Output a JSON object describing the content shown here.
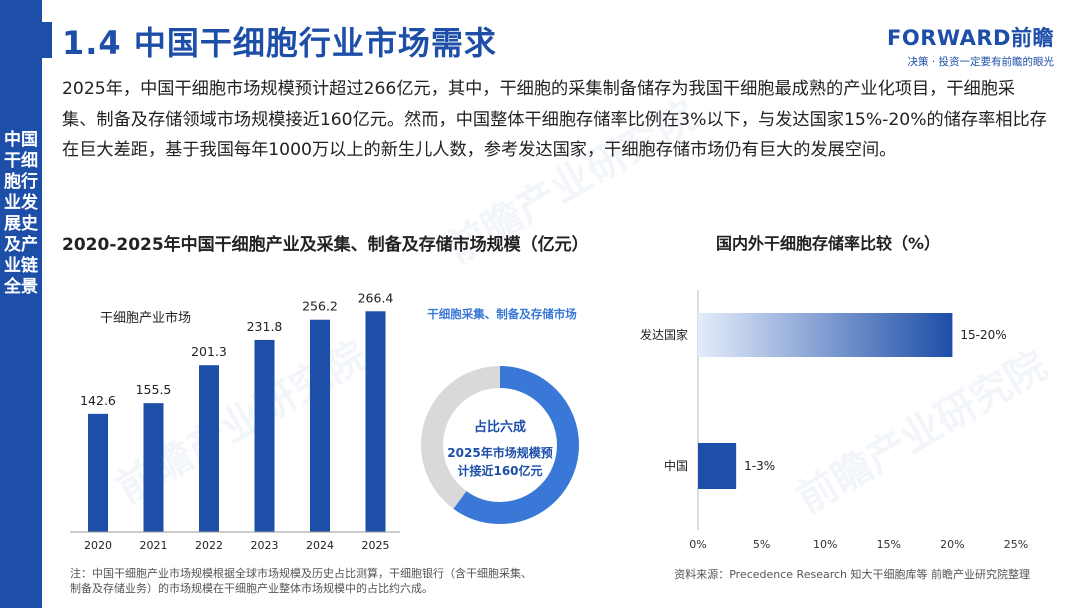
{
  "header": {
    "title": "1.4 中国干细胞行业市场需求",
    "logo_main": "FORWARD前瞻",
    "logo_sub": "决策 · 投资一定要有前瞻的眼光"
  },
  "sidebar": {
    "text": "中国干细胞行业发展史及产业链全景"
  },
  "intro": "2025年，中国干细胞市场规模预计超过266亿元，其中，干细胞的采集制备储存为我国干细胞最成熟的产业化项目，干细胞采集、制备及存储领域市场规模接近160亿元。然而，中国整体干细胞存储率比例在3%以下，与发达国家15%-20%的储存率相比存在巨大差距，基于我国每年1000万以上的新生儿人数，参考发达国家，干细胞存储市场仍有巨大的发展空间。",
  "watermark": "前瞻产业研究院",
  "footnote": "注：中国干细胞产业市场规模根据全球市场规模及历史占比测算，干细胞银行（含干细胞采集、制备及存储业务）的市场规模在干细胞产业整体市场规模中的占比约六成。",
  "source": "资料来源：Precedence Research 知大干细胞库等 前瞻产业研究院整理",
  "chart_data": [
    {
      "type": "bar",
      "title": "2020-2025年中国干细胞产业及采集、制备及存储市场规模（亿元）",
      "series_label": "干细胞产业市场",
      "categories": [
        "2020",
        "2021",
        "2022",
        "2023",
        "2024",
        "2025"
      ],
      "values": [
        142.6,
        155.5,
        201.3,
        231.8,
        256.2,
        266.4
      ],
      "value_labels": [
        "142.6",
        "155.5",
        "201.3",
        "231.8",
        "256.2",
        "266.4"
      ],
      "ylim": [
        0,
        280
      ],
      "grid": false,
      "color": "#1d4ea8",
      "donut": {
        "label": "干细胞采集、制备及存储市场",
        "share": 0.6,
        "center_line1": "占比六成",
        "center_line2": "2025年市场规模预",
        "center_line3": "计接近160亿元",
        "color": "#3a78d8",
        "rest_color": "#d9d9d9"
      }
    },
    {
      "type": "bar",
      "orientation": "horizontal",
      "title": "国内外干细胞存储率比较（%）",
      "categories": [
        "发达国家",
        "中国"
      ],
      "values": [
        20,
        3
      ],
      "value_labels": [
        "15-20%",
        "1-3%"
      ],
      "xlim": [
        0,
        25
      ],
      "xticks": [
        "0%",
        "5%",
        "10%",
        "15%",
        "20%",
        "25%"
      ],
      "grid": false,
      "color": "#1d4ea8"
    }
  ]
}
